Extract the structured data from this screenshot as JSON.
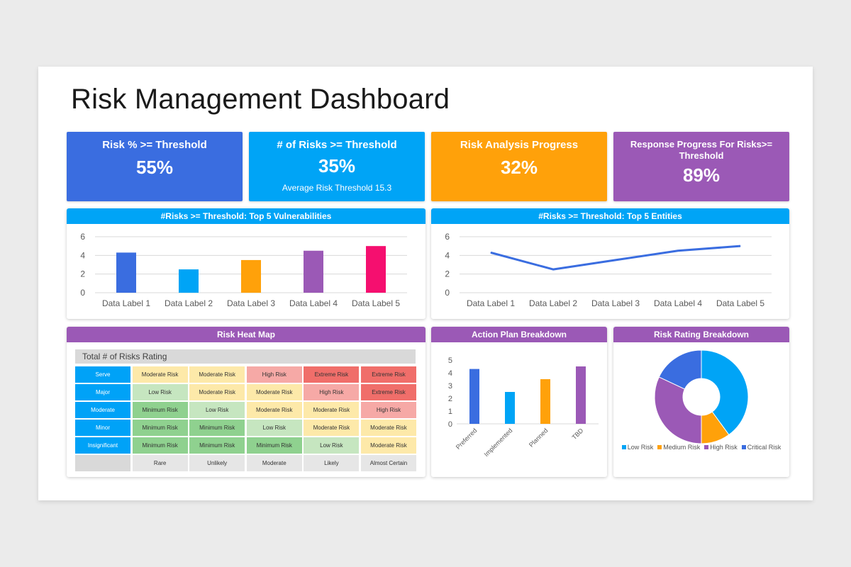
{
  "title": "Risk Management Dashboard",
  "kpis": [
    {
      "label": "Risk % >= Threshold",
      "value": "55%",
      "sub": "",
      "color": "#3a6de0"
    },
    {
      "label": "# of Risks >= Threshold",
      "value": "35%",
      "sub": "Average Risk Threshold 15.3",
      "color": "#00a4f6"
    },
    {
      "label": "Risk Analysis Progress",
      "value": "32%",
      "sub": "",
      "color": "#ffa10a"
    },
    {
      "label": "Response Progress For Risks>= Threshold",
      "value": "89%",
      "sub": "",
      "color": "#9b59b6"
    }
  ],
  "panels": {
    "vulnerabilities": {
      "title": "#Risks >= Threshold: Top 5 Vulnerabilities",
      "color": "#00a4f6"
    },
    "entities": {
      "title": "#Risks >= Threshold: Top 5 Entities",
      "color": "#00a4f6"
    },
    "heatmap": {
      "title": "Risk Heat Map",
      "color": "#9b59b6"
    },
    "action_plan": {
      "title": "Action Plan Breakdown",
      "color": "#9b59b6"
    },
    "risk_rating": {
      "title": "Risk Rating Breakdown",
      "color": "#9b59b6"
    }
  },
  "heatmap": {
    "table_title": "Total # of Risks Rating",
    "rows": [
      {
        "label": "Serve",
        "cells": [
          "Moderate Risk",
          "Moderate Risk",
          "High Risk",
          "Extreme Risk",
          "Extreme Risk"
        ]
      },
      {
        "label": "Major",
        "cells": [
          "Low Risk",
          "Moderate Risk",
          "Moderate Risk",
          "High Risk",
          "Extreme Risk"
        ]
      },
      {
        "label": "Moderate",
        "cells": [
          "Minimum Risk",
          "Low Risk",
          "Moderate Risk",
          "Moderate Risk",
          "High Risk"
        ]
      },
      {
        "label": "Minor",
        "cells": [
          "Minimum Risk",
          "Minimum Risk",
          "Low Risk",
          "Moderate Risk",
          "Moderate Risk"
        ]
      },
      {
        "label": "Insignificant",
        "cells": [
          "Minimum Risk",
          "Minimum Risk",
          "Minimum Risk",
          "Low Risk",
          "Moderate Risk"
        ]
      }
    ],
    "columns": [
      "Rare",
      "Unlikely",
      "Moderate",
      "Likely",
      "Almost Certain"
    ],
    "level_colors": {
      "Minimum Risk": "#8fd18f",
      "Low Risk": "#c6e6c0",
      "Moderate Risk": "#fde9a9",
      "High Risk": "#f6a9a6",
      "Extreme Risk": "#f06e6a"
    }
  },
  "chart_data": [
    {
      "type": "bar",
      "categories": [
        "Data Label 1",
        "Data Label 2",
        "Data Label 3",
        "Data Label 4",
        "Data Label 5"
      ],
      "values": [
        4.3,
        2.5,
        3.5,
        4.5,
        5.0
      ],
      "colors": [
        "#3a6de0",
        "#00a4f6",
        "#ffa10a",
        "#9b59b6",
        "#f50f6f"
      ],
      "ylim": [
        0,
        6
      ],
      "yticks": [
        0,
        2,
        4,
        6
      ],
      "grid": true
    },
    {
      "type": "line",
      "categories": [
        "Data Label 1",
        "Data Label 2",
        "Data Label 3",
        "Data Label 4",
        "Data Label 5"
      ],
      "values": [
        4.3,
        2.5,
        3.5,
        4.5,
        5.0
      ],
      "color": "#3a6de0",
      "ylim": [
        0,
        6
      ],
      "yticks": [
        0,
        2,
        4,
        6
      ],
      "grid": true
    },
    {
      "type": "bar",
      "categories": [
        "Preferred",
        "Implemented",
        "Planned",
        "TBD"
      ],
      "values": [
        4.3,
        2.5,
        3.5,
        4.5
      ],
      "colors": [
        "#3a6de0",
        "#00a4f6",
        "#ffa10a",
        "#9b59b6"
      ],
      "ylim": [
        0,
        5
      ],
      "yticks": [
        0,
        1,
        2,
        3,
        4,
        5
      ],
      "grid": false
    },
    {
      "type": "pie",
      "donut": true,
      "labels": [
        "Low Risk",
        "Medium Risk",
        "High Risk",
        "Critical Risk"
      ],
      "values": [
        40,
        10,
        32,
        18
      ],
      "colors": [
        "#00a4f6",
        "#ffa10a",
        "#9b59b6",
        "#3a6de0"
      ],
      "legend": "bottom"
    }
  ]
}
